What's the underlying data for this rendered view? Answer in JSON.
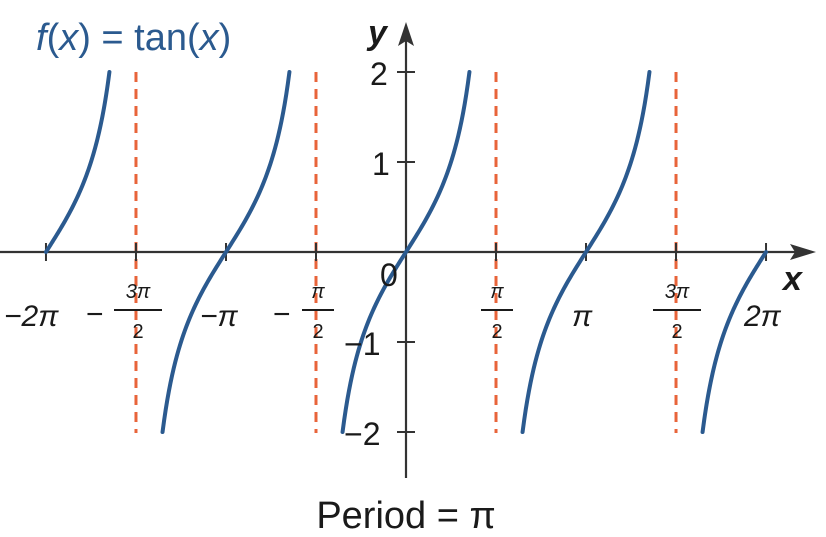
{
  "chart_data": {
    "type": "line",
    "function_label": {
      "f": "f",
      "open": "(",
      "x": "x",
      "close": ") = tan(",
      "x2": "x",
      "end": ")"
    },
    "xlabel": "x",
    "ylabel": "y",
    "xlim": [
      -6.5,
      7.0
    ],
    "ylim": [
      -2.5,
      2.25
    ],
    "x_ticks": [
      {
        "id": "m2pi",
        "value": -6.2832,
        "label": "−2π"
      },
      {
        "id": "m3pi2",
        "value": -4.7124,
        "sign": "−",
        "num": "3π",
        "den": "2"
      },
      {
        "id": "mpi",
        "value": -3.1416,
        "label": "−π"
      },
      {
        "id": "mpi2",
        "value": -1.5708,
        "sign": "−",
        "num": "π",
        "den": "2"
      },
      {
        "id": "pi2",
        "value": 1.5708,
        "num": "π",
        "den": "2"
      },
      {
        "id": "pi",
        "value": 3.1416,
        "label": "π"
      },
      {
        "id": "p3pi2",
        "value": 4.7124,
        "num": "3π",
        "den": "2"
      },
      {
        "id": "p2pi",
        "value": 6.2832,
        "label": "2π"
      }
    ],
    "y_ticks": [
      {
        "value": 2,
        "label": "2"
      },
      {
        "value": 1,
        "label": "1"
      },
      {
        "value": -1,
        "label": "−1"
      },
      {
        "value": -2,
        "label": "−2"
      }
    ],
    "origin_label": "0",
    "asymptotes": [
      -4.7124,
      -1.5708,
      1.5708,
      4.7124
    ],
    "series": [
      {
        "function": "tan",
        "x_range": [
          -6.2832,
          -5.176
        ]
      },
      {
        "function": "tan",
        "x_range": [
          -4.2488,
          -2.0344
        ]
      },
      {
        "function": "tan",
        "x_range": [
          -1.1071,
          1.1071
        ]
      },
      {
        "function": "tan",
        "x_range": [
          2.0344,
          4.2488
        ]
      },
      {
        "function": "tan",
        "x_range": [
          5.176,
          6.2832
        ]
      }
    ],
    "caption": "Period = π",
    "colors": {
      "curve": "#2b5a8f",
      "asymptote": "#e8643a",
      "axis": "#333333",
      "text": "#1a1a1a"
    }
  }
}
